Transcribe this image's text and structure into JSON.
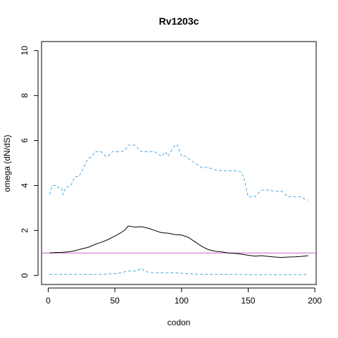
{
  "chart_data": {
    "type": "line",
    "title": "Rv1203c",
    "xlabel": "codon",
    "ylabel": "omega (dN/dS)",
    "xlim": [
      -5,
      201
    ],
    "ylim": [
      -0.4,
      10.4
    ],
    "xticks": [
      0,
      50,
      100,
      150,
      200
    ],
    "yticks": [
      0,
      2,
      4,
      6,
      8,
      10
    ],
    "grid": false,
    "reference_line": {
      "y": 1,
      "color": "#c266c2"
    },
    "series": [
      {
        "style": "solid",
        "color": "#000000",
        "x": [
          1,
          5,
          10,
          15,
          20,
          25,
          30,
          35,
          40,
          45,
          50,
          55,
          58,
          60,
          65,
          70,
          75,
          80,
          85,
          90,
          95,
          100,
          105,
          110,
          115,
          120,
          125,
          130,
          135,
          140,
          145,
          150,
          155,
          160,
          165,
          170,
          175,
          180,
          185,
          190,
          195
        ],
        "y": [
          1.0,
          1.02,
          1.03,
          1.05,
          1.1,
          1.18,
          1.25,
          1.38,
          1.48,
          1.6,
          1.75,
          1.92,
          2.05,
          2.2,
          2.15,
          2.17,
          2.1,
          2.0,
          1.9,
          1.88,
          1.82,
          1.8,
          1.7,
          1.5,
          1.3,
          1.15,
          1.08,
          1.05,
          1.0,
          0.98,
          0.95,
          0.9,
          0.86,
          0.88,
          0.85,
          0.82,
          0.8,
          0.82,
          0.83,
          0.85,
          0.88
        ]
      },
      {
        "style": "dashed",
        "color": "#4aa8df",
        "x": [
          1,
          3,
          5,
          8,
          10,
          11,
          13,
          15,
          17,
          20,
          23,
          25,
          28,
          30,
          33,
          35,
          38,
          40,
          43,
          45,
          48,
          50,
          53,
          55,
          58,
          60,
          65,
          70,
          72,
          75,
          80,
          85,
          88,
          90,
          92,
          95,
          97,
          100,
          103,
          105,
          110,
          115,
          120,
          125,
          130,
          135,
          140,
          145,
          147,
          150,
          155,
          160,
          165,
          170,
          175,
          180,
          185,
          190,
          192,
          195
        ],
        "y": [
          3.6,
          4.0,
          4.0,
          3.9,
          3.9,
          3.6,
          3.9,
          3.95,
          4.0,
          4.4,
          4.4,
          4.6,
          5.0,
          5.2,
          5.3,
          5.5,
          5.5,
          5.5,
          5.3,
          5.3,
          5.5,
          5.5,
          5.5,
          5.5,
          5.6,
          5.8,
          5.8,
          5.5,
          5.5,
          5.5,
          5.5,
          5.3,
          5.5,
          5.3,
          5.5,
          5.8,
          5.8,
          5.3,
          5.3,
          5.2,
          5.0,
          4.8,
          4.8,
          4.7,
          4.65,
          4.65,
          4.65,
          4.6,
          4.3,
          3.5,
          3.5,
          3.8,
          3.8,
          3.75,
          3.75,
          3.5,
          3.5,
          3.5,
          3.4,
          3.35
        ]
      },
      {
        "style": "dashed",
        "color": "#4aa8df",
        "x": [
          1,
          10,
          20,
          30,
          40,
          50,
          55,
          58,
          62,
          65,
          68,
          70,
          72,
          75,
          80,
          85,
          90,
          95,
          100,
          105,
          110,
          120,
          130,
          140,
          150,
          160,
          170,
          180,
          190,
          195
        ],
        "y": [
          0.05,
          0.05,
          0.05,
          0.05,
          0.05,
          0.08,
          0.12,
          0.18,
          0.2,
          0.2,
          0.25,
          0.32,
          0.2,
          0.15,
          0.12,
          0.12,
          0.12,
          0.12,
          0.1,
          0.08,
          0.06,
          0.05,
          0.05,
          0.05,
          0.04,
          0.04,
          0.04,
          0.04,
          0.04,
          0.04
        ]
      }
    ]
  }
}
